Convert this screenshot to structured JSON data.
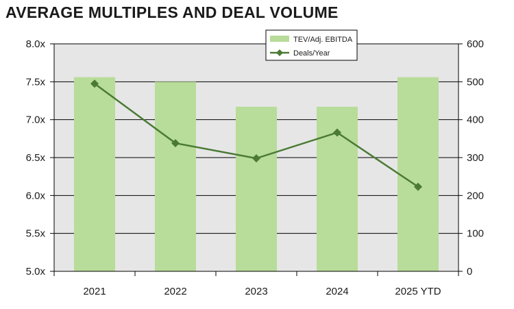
{
  "title": "AVERAGE MULTIPLES AND DEAL VOLUME",
  "chart_data": {
    "type": "bar",
    "title": "AVERAGE MULTIPLES AND DEAL VOLUME",
    "categories": [
      "2021",
      "2022",
      "2023",
      "2024",
      "2025 YTD"
    ],
    "series": [
      {
        "name": "TEV/Adj. EBITDA",
        "type": "bar",
        "axis": "left",
        "color": "#b8dc99",
        "values": [
          7.56,
          7.5,
          7.17,
          7.17,
          7.56
        ]
      },
      {
        "name": "Deals/Year",
        "type": "line",
        "axis": "right",
        "color": "#4a7a34",
        "values": [
          495,
          338,
          298,
          366,
          223
        ]
      }
    ],
    "y_left": {
      "min": 5.0,
      "max": 8.0,
      "ticks": [
        "5.0x",
        "5.5x",
        "6.0x",
        "6.5x",
        "7.0x",
        "7.5x",
        "8.0x"
      ]
    },
    "y_right": {
      "min": 0,
      "max": 600,
      "ticks": [
        "0",
        "100",
        "200",
        "300",
        "400",
        "500",
        "600"
      ]
    },
    "grid": true,
    "plot_background": "#e6e6e6",
    "legend": "top-center"
  }
}
